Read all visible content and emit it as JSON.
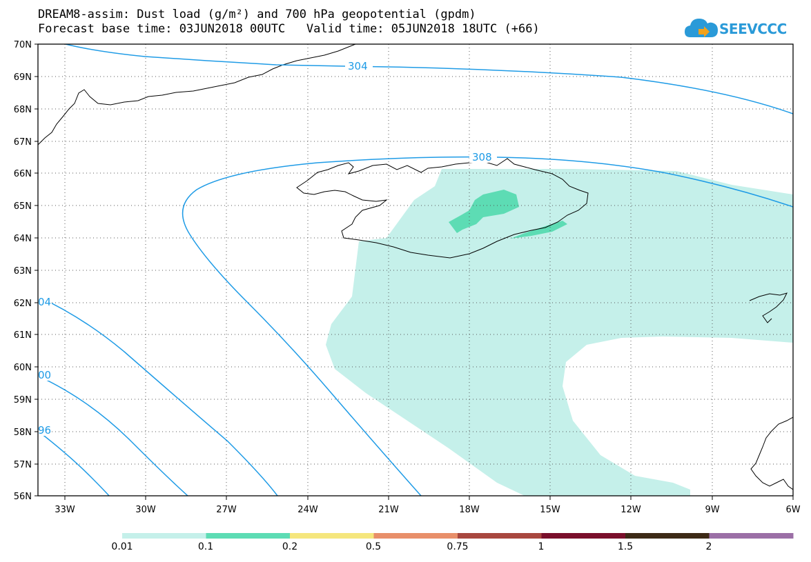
{
  "header": {
    "title_line1": "DREAM8-assim: Dust load (g/m²) and 700 hPa geopotential (gpdm)",
    "title_line2": "Forecast base time: 03JUN2018 00UTC   Valid time: 05JUN2018 18UTC (+66)",
    "logo_text": "SEEVCCC"
  },
  "map": {
    "lon_labels": [
      "33W",
      "30W",
      "27W",
      "24W",
      "21W",
      "18W",
      "15W",
      "12W",
      "9W",
      "6W"
    ],
    "lat_labels": [
      "70N",
      "69N",
      "68N",
      "67N",
      "66N",
      "65N",
      "64N",
      "63N",
      "62N",
      "61N",
      "60N",
      "59N",
      "58N",
      "57N",
      "56N"
    ],
    "contour_labels": [
      "304",
      "308",
      "04",
      "00",
      "96"
    ]
  },
  "legend": {
    "labels": [
      "0.01",
      "0.1",
      "0.2",
      "0.5",
      "0.75",
      "1",
      "1.5",
      "2"
    ],
    "colors": [
      "#c5f0ea",
      "#5ddcb4",
      "#f5e67d",
      "#e88f6a",
      "#a8473f",
      "#7a0f2b",
      "#3d2a16",
      "#9b6fa6"
    ]
  },
  "colors": {
    "contour": "#1e9be6",
    "dust_light": "#c5f0ea",
    "dust_medium": "#5ddcb4",
    "coast": "#000000"
  }
}
